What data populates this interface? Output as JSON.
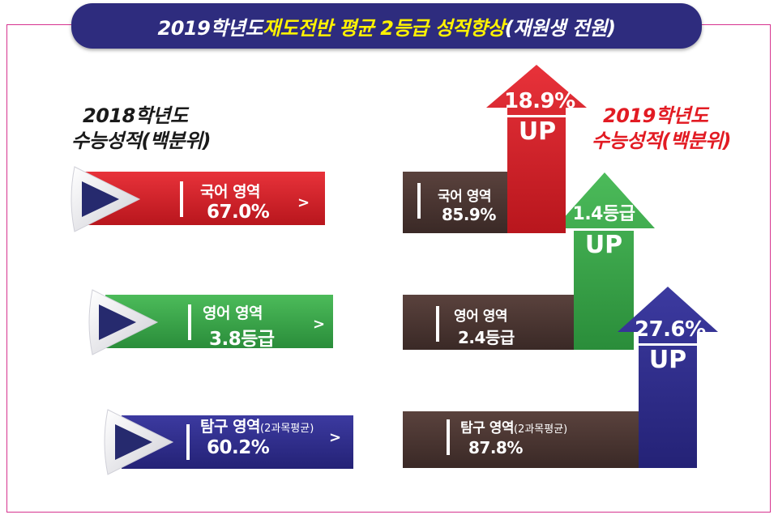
{
  "title": {
    "part1": "2019학년도 ",
    "part2": "재도전반 평균 2등급 성적향상",
    "part3": "(재원생 전원)"
  },
  "left_heading": {
    "line1": "2018학년도",
    "line2": "수능성적(백분위)"
  },
  "right_heading": {
    "line1": "2019학년도",
    "line2": "수능성적(백분위)"
  },
  "left_bars": [
    {
      "subject": "국어 영역",
      "note": "",
      "value": "67.0%",
      "color": "#d8242b"
    },
    {
      "subject": "영어 영역",
      "note": "",
      "value": "3.8등급",
      "color": "#3aaa4a"
    },
    {
      "subject": "탐구 영역",
      "note": "(2과목평균)",
      "value": "60.2%",
      "color": "#2e2c8e"
    }
  ],
  "right_bars": [
    {
      "subject": "국어 영역",
      "note": "",
      "value": "85.9%",
      "color": "#4a3430"
    },
    {
      "subject": "영어 영역",
      "note": "",
      "value": "2.4등급",
      "color": "#4a3430"
    },
    {
      "subject": "탐구 영역",
      "note": "(2과목평균)",
      "value": "87.8%",
      "color": "#4a3430"
    }
  ],
  "arrows": [
    {
      "amount": "18.9%",
      "label": "UP",
      "color": "#e21b23"
    },
    {
      "amount": "1.4등급",
      "label": "UP",
      "color": "#3aaa4a"
    },
    {
      "amount": "27.6%",
      "label": "UP",
      "color": "#2e2c8e"
    }
  ],
  "chevron": ">"
}
